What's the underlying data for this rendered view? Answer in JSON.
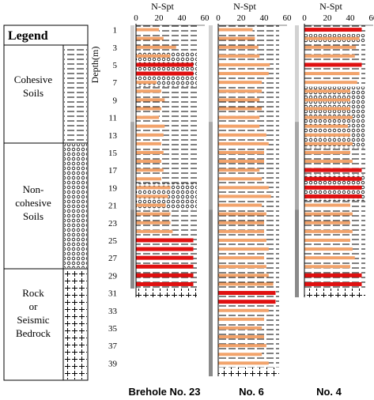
{
  "legend": {
    "title": "Legend",
    "items": [
      {
        "lines": [
          "Cohesive",
          "Soils"
        ],
        "pattern": "dash"
      },
      {
        "lines": [
          "Non-",
          "cohesive",
          "Soils"
        ],
        "pattern": "circle"
      },
      {
        "lines": [
          "Rock",
          "or",
          "Seismic",
          "Bedrock"
        ],
        "pattern": "cross"
      }
    ]
  },
  "colors": {
    "spt_bar": "#f2a36b",
    "spt_high": "#e01010",
    "gray_light": "#c8c8c8",
    "gray_dark": "#8c8c8c"
  },
  "chart_data": {
    "type": "bar",
    "axis_title": "N-Spt",
    "depth_label": "Depth(m)",
    "xticks": [
      0,
      20,
      40,
      60
    ],
    "xlim": [
      0,
      60
    ],
    "depth_ticks": [
      1,
      3,
      5,
      7,
      9,
      11,
      13,
      15,
      17,
      19,
      21,
      23,
      25,
      27,
      29,
      31,
      33,
      35,
      37,
      39
    ],
    "boreholes": [
      {
        "label": "Brehole No. 23",
        "bedrock_depth": 31,
        "spt": [
          {
            "depth": 1,
            "n": 20
          },
          {
            "depth": 2,
            "n": 24
          },
          {
            "depth": 3,
            "n": 35
          },
          {
            "depth": 4,
            "n": 30
          },
          {
            "depth": 5,
            "n": 50
          },
          {
            "depth": 6,
            "n": 50
          },
          {
            "depth": 7,
            "n": 18
          },
          {
            "depth": 8,
            "n": 22
          },
          {
            "depth": 9,
            "n": 25
          },
          {
            "depth": 10,
            "n": 22
          },
          {
            "depth": 11,
            "n": 20
          },
          {
            "depth": 12,
            "n": 25
          },
          {
            "depth": 13,
            "n": 24
          },
          {
            "depth": 14,
            "n": 22
          },
          {
            "depth": 15,
            "n": 24
          },
          {
            "depth": 16,
            "n": 22
          },
          {
            "depth": 17,
            "n": 24
          },
          {
            "depth": 18,
            "n": 22
          },
          {
            "depth": 19,
            "n": 30
          },
          {
            "depth": 20,
            "n": 28
          },
          {
            "depth": 21,
            "n": 26
          },
          {
            "depth": 22,
            "n": 30
          },
          {
            "depth": 23,
            "n": 30
          },
          {
            "depth": 24,
            "n": 32
          },
          {
            "depth": 25,
            "n": 50
          },
          {
            "depth": 26,
            "n": 50
          },
          {
            "depth": 27,
            "n": 50
          },
          {
            "depth": 28,
            "n": 50
          },
          {
            "depth": 29,
            "n": 50
          },
          {
            "depth": 30,
            "n": 50
          }
        ],
        "layers": [
          {
            "top": 0,
            "bottom": 3,
            "type": "cohesive"
          },
          {
            "top": 3,
            "bottom": 7,
            "type": "noncohesive"
          },
          {
            "top": 7,
            "bottom": 18,
            "type": "cohesive"
          },
          {
            "top": 18,
            "bottom": 21,
            "type": "noncohesive"
          },
          {
            "top": 21,
            "bottom": 30,
            "type": "cohesive"
          },
          {
            "top": 30,
            "bottom": 31,
            "type": "rock"
          }
        ],
        "casing": [
          {
            "top": 0,
            "bottom": 11,
            "shade": "light"
          },
          {
            "top": 11,
            "bottom": 21,
            "shade": "mid"
          },
          {
            "top": 21,
            "bottom": 30,
            "shade": "dark"
          }
        ]
      },
      {
        "label": "No. 6",
        "bedrock_depth": 40,
        "spt": [
          {
            "depth": 1,
            "n": 30
          },
          {
            "depth": 2,
            "n": 32
          },
          {
            "depth": 3,
            "n": 35
          },
          {
            "depth": 4,
            "n": 36
          },
          {
            "depth": 5,
            "n": 45
          },
          {
            "depth": 6,
            "n": 44
          },
          {
            "depth": 7,
            "n": 38
          },
          {
            "depth": 8,
            "n": 38
          },
          {
            "depth": 9,
            "n": 36
          },
          {
            "depth": 10,
            "n": 38
          },
          {
            "depth": 11,
            "n": 36
          },
          {
            "depth": 12,
            "n": 36
          },
          {
            "depth": 13,
            "n": 42
          },
          {
            "depth": 14,
            "n": 44
          },
          {
            "depth": 15,
            "n": 40
          },
          {
            "depth": 16,
            "n": 40
          },
          {
            "depth": 17,
            "n": 36
          },
          {
            "depth": 18,
            "n": 38
          },
          {
            "depth": 19,
            "n": 44
          },
          {
            "depth": 20,
            "n": 46
          },
          {
            "depth": 21,
            "n": 38
          },
          {
            "depth": 22,
            "n": 42
          },
          {
            "depth": 23,
            "n": 40
          },
          {
            "depth": 24,
            "n": 40
          },
          {
            "depth": 25,
            "n": 42
          },
          {
            "depth": 26,
            "n": 44
          },
          {
            "depth": 27,
            "n": 40
          },
          {
            "depth": 28,
            "n": 42
          },
          {
            "depth": 29,
            "n": 44
          },
          {
            "depth": 30,
            "n": 48
          },
          {
            "depth": 31,
            "n": 50
          },
          {
            "depth": 32,
            "n": 50
          },
          {
            "depth": 33,
            "n": 44
          },
          {
            "depth": 34,
            "n": 40
          },
          {
            "depth": 35,
            "n": 38
          },
          {
            "depth": 36,
            "n": 40
          },
          {
            "depth": 37,
            "n": 42
          },
          {
            "depth": 38,
            "n": 38
          },
          {
            "depth": 39,
            "n": 44
          }
        ],
        "layers": [
          {
            "top": 0,
            "bottom": 39,
            "type": "cohesive"
          },
          {
            "top": 39,
            "bottom": 40,
            "type": "rock"
          }
        ],
        "casing": [
          {
            "top": 0,
            "bottom": 11,
            "shade": "light"
          },
          {
            "top": 11,
            "bottom": 21,
            "shade": "mid"
          },
          {
            "top": 21,
            "bottom": 40,
            "shade": "dark"
          }
        ]
      },
      {
        "label": "No. 4",
        "bedrock_depth": 31,
        "spt": [
          {
            "depth": 1,
            "n": 50
          },
          {
            "depth": 2,
            "n": 48
          },
          {
            "depth": 3,
            "n": 45
          },
          {
            "depth": 4,
            "n": 44
          },
          {
            "depth": 5,
            "n": 50
          },
          {
            "depth": 6,
            "n": 48
          },
          {
            "depth": 7,
            "n": 46
          },
          {
            "depth": 8,
            "n": 40
          },
          {
            "depth": 9,
            "n": 40
          },
          {
            "depth": 10,
            "n": 40
          },
          {
            "depth": 11,
            "n": 42
          },
          {
            "depth": 12,
            "n": 38
          },
          {
            "depth": 13,
            "n": 40
          },
          {
            "depth": 14,
            "n": 42
          },
          {
            "depth": 15,
            "n": 40
          },
          {
            "depth": 16,
            "n": 42
          },
          {
            "depth": 17,
            "n": 50
          },
          {
            "depth": 18,
            "n": 50
          },
          {
            "depth": 19,
            "n": 50
          },
          {
            "depth": 20,
            "n": 50
          },
          {
            "depth": 21,
            "n": 40
          },
          {
            "depth": 22,
            "n": 42
          },
          {
            "depth": 23,
            "n": 40
          },
          {
            "depth": 24,
            "n": 42
          },
          {
            "depth": 25,
            "n": 40
          },
          {
            "depth": 26,
            "n": 42
          },
          {
            "depth": 27,
            "n": 44
          },
          {
            "depth": 28,
            "n": 40
          },
          {
            "depth": 29,
            "n": 50
          },
          {
            "depth": 30,
            "n": 50
          }
        ],
        "layers": [
          {
            "top": 0,
            "bottom": 1,
            "type": "cohesive"
          },
          {
            "top": 1,
            "bottom": 2,
            "type": "noncohesive"
          },
          {
            "top": 2,
            "bottom": 7,
            "type": "cohesive"
          },
          {
            "top": 7,
            "bottom": 14,
            "type": "noncohesive"
          },
          {
            "top": 14,
            "bottom": 17,
            "type": "cohesive"
          },
          {
            "top": 17,
            "bottom": 20,
            "type": "noncohesive"
          },
          {
            "top": 20,
            "bottom": 30,
            "type": "cohesive"
          },
          {
            "top": 30,
            "bottom": 31,
            "type": "rock"
          }
        ],
        "casing": [
          {
            "top": 0,
            "bottom": 11,
            "shade": "light"
          },
          {
            "top": 11,
            "bottom": 21,
            "shade": "mid"
          },
          {
            "top": 21,
            "bottom": 31,
            "shade": "dark"
          }
        ]
      }
    ]
  }
}
